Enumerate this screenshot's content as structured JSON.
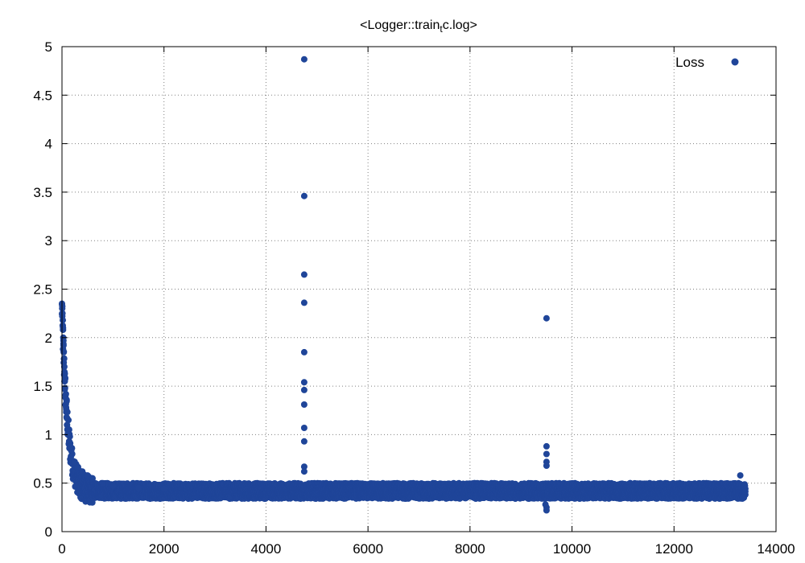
{
  "chart_data": {
    "type": "scatter",
    "title": {
      "prefix": "<Logger::train",
      "subscript": "t",
      "suffix": "c.log>"
    },
    "xlabel": "",
    "ylabel": "",
    "xlim": [
      0,
      14000
    ],
    "ylim": [
      0,
      5
    ],
    "x_ticks": [
      "0",
      "2000",
      "4000",
      "6000",
      "8000",
      "10000",
      "12000",
      "14000"
    ],
    "y_ticks": [
      "0",
      "0.5",
      "1",
      "1.5",
      "2",
      "2.5",
      "3",
      "3.5",
      "4",
      "4.5",
      "5"
    ],
    "grid": true,
    "legend_position": "top-right",
    "colors": {
      "series": "#1f4599"
    },
    "series": [
      {
        "name": "Loss",
        "x_range": [
          0,
          13400
        ],
        "trend": {
          "start_value": 2.3,
          "decay_to": 0.42,
          "band_half_width": 0.08
        },
        "points": [
          [
            0,
            2.35
          ],
          [
            5,
            2.3
          ],
          [
            10,
            2.25
          ],
          [
            15,
            2.18
          ],
          [
            20,
            2.1
          ],
          [
            25,
            2.0
          ],
          [
            30,
            1.92
          ],
          [
            35,
            1.85
          ],
          [
            40,
            1.78
          ],
          [
            45,
            1.7
          ],
          [
            50,
            1.62
          ],
          [
            55,
            1.55
          ],
          [
            60,
            1.48
          ],
          [
            70,
            1.38
          ],
          [
            80,
            1.28
          ],
          [
            90,
            1.18
          ],
          [
            100,
            1.1
          ],
          [
            120,
            1.0
          ],
          [
            140,
            0.93
          ],
          [
            160,
            0.88
          ],
          [
            200,
            0.8
          ],
          [
            250,
            0.72
          ],
          [
            300,
            0.66
          ],
          [
            400,
            0.62
          ],
          [
            500,
            0.58
          ],
          [
            600,
            0.55
          ],
          [
            800,
            0.5
          ],
          [
            1000,
            0.47
          ],
          [
            1500,
            0.45
          ],
          [
            2000,
            0.44
          ],
          [
            4750,
            4.87
          ],
          [
            4750,
            3.46
          ],
          [
            4750,
            2.65
          ],
          [
            4750,
            2.36
          ],
          [
            4750,
            1.85
          ],
          [
            4750,
            1.54
          ],
          [
            4750,
            1.46
          ],
          [
            4750,
            1.31
          ],
          [
            4750,
            1.07
          ],
          [
            4750,
            0.93
          ],
          [
            4750,
            0.67
          ],
          [
            4750,
            0.62
          ],
          [
            9500,
            2.2
          ],
          [
            9500,
            0.88
          ],
          [
            9500,
            0.8
          ],
          [
            9500,
            0.72
          ],
          [
            9500,
            0.68
          ],
          [
            9500,
            0.25
          ],
          [
            9500,
            0.22
          ],
          [
            9480,
            0.28
          ],
          [
            13300,
            0.58
          ],
          [
            13350,
            0.35
          ]
        ]
      }
    ]
  }
}
